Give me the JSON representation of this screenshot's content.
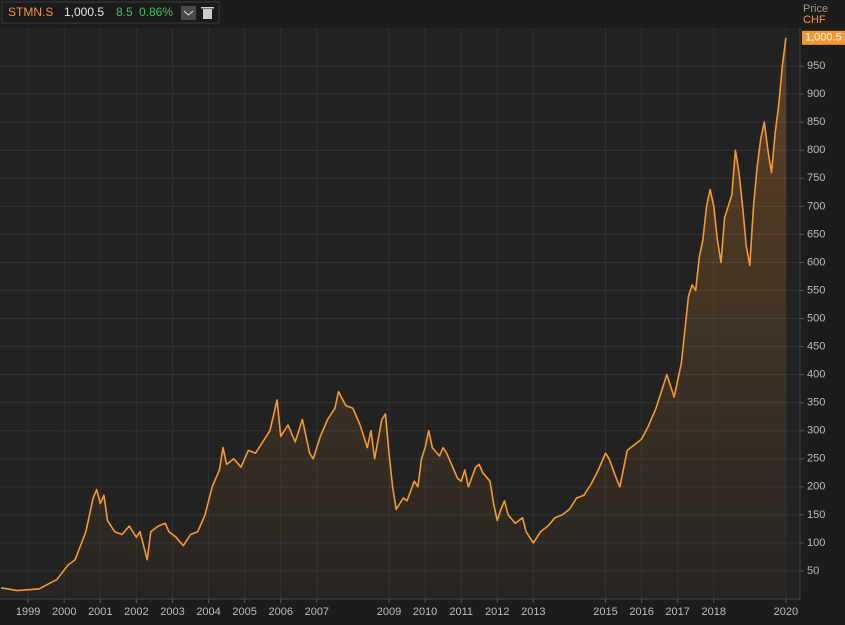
{
  "chart_data": {
    "type": "line",
    "header": {
      "last": "1,000.5",
      "change": "8.5",
      "change_pct": "0.86%"
    },
    "y_axis_title": "Price",
    "y_axis_unit": "CHF",
    "x": [
      1998.25,
      1998.7,
      1999.3,
      1999.8,
      2000.1,
      2000.3,
      2000.6,
      2000.8,
      2000.9,
      2001.0,
      2001.1,
      2001.2,
      2001.4,
      2001.6,
      2001.8,
      2002.0,
      2002.1,
      2002.3,
      2002.4,
      2002.6,
      2002.8,
      2002.9,
      2003.1,
      2003.3,
      2003.5,
      2003.7,
      2003.9,
      2004.1,
      2004.3,
      2004.4,
      2004.5,
      2004.7,
      2004.9,
      2005.1,
      2005.3,
      2005.5,
      2005.7,
      2005.9,
      2006.0,
      2006.2,
      2006.4,
      2006.6,
      2006.7,
      2006.8,
      2006.9,
      2007.1,
      2007.3,
      2007.5,
      2007.6,
      2007.8,
      2008.0,
      2008.2,
      2008.4,
      2008.5,
      2008.6,
      2008.8,
      2008.9,
      2009.0,
      2009.1,
      2009.2,
      2009.4,
      2009.5,
      2009.7,
      2009.8,
      2009.9,
      2010.0,
      2010.1,
      2010.2,
      2010.4,
      2010.5,
      2010.6,
      2010.8,
      2010.9,
      2011.0,
      2011.1,
      2011.2,
      2011.4,
      2011.5,
      2011.6,
      2011.8,
      2011.9,
      2012.0,
      2012.1,
      2012.2,
      2012.3,
      2012.5,
      2012.7,
      2012.8,
      2012.9,
      2013.0,
      2013.2,
      2013.4,
      2013.6,
      2013.8,
      2014.0,
      2014.2,
      2014.4,
      2014.6,
      2014.8,
      2015.0,
      2015.1,
      2015.3,
      2015.4,
      2015.6,
      2015.8,
      2016.0,
      2016.2,
      2016.4,
      2016.6,
      2016.7,
      2016.8,
      2016.9,
      2017.1,
      2017.2,
      2017.3,
      2017.4,
      2017.5,
      2017.6,
      2017.7,
      2017.8,
      2017.9,
      2018.0,
      2018.1,
      2018.2,
      2018.3,
      2018.5,
      2018.6,
      2018.7,
      2018.8,
      2018.9,
      2019.0,
      2019.1,
      2019.2,
      2019.3,
      2019.4,
      2019.5,
      2019.6,
      2019.7,
      2019.8,
      2019.9,
      2020.0
    ],
    "series": [
      {
        "name": "STMN.S",
        "color": "#f5982f",
        "values": [
          20,
          15,
          18,
          35,
          60,
          70,
          120,
          180,
          195,
          170,
          185,
          140,
          120,
          115,
          130,
          110,
          120,
          70,
          120,
          130,
          135,
          120,
          110,
          95,
          115,
          120,
          150,
          200,
          230,
          270,
          240,
          250,
          235,
          265,
          260,
          280,
          300,
          355,
          290,
          310,
          280,
          320,
          290,
          260,
          250,
          290,
          320,
          340,
          370,
          345,
          340,
          310,
          270,
          300,
          250,
          320,
          330,
          260,
          200,
          160,
          180,
          175,
          210,
          200,
          250,
          270,
          300,
          270,
          255,
          270,
          260,
          230,
          215,
          210,
          230,
          200,
          235,
          240,
          225,
          210,
          170,
          140,
          160,
          175,
          150,
          135,
          145,
          120,
          110,
          100,
          120,
          130,
          145,
          150,
          160,
          180,
          185,
          205,
          230,
          260,
          250,
          215,
          200,
          265,
          275,
          285,
          310,
          340,
          380,
          400,
          380,
          360,
          420,
          480,
          540,
          560,
          550,
          610,
          640,
          700,
          730,
          700,
          640,
          600,
          680,
          720,
          800,
          760,
          700,
          630,
          595,
          700,
          770,
          820,
          850,
          800,
          760,
          830,
          880,
          950,
          1000.5
        ]
      }
    ],
    "xlim": [
      1998.22,
      2020.39
    ],
    "xticks": [
      1999,
      2000,
      2001,
      2002,
      2003,
      2004,
      2005,
      2006,
      2007,
      2009,
      2010,
      2011,
      2012,
      2013,
      2015,
      2016,
      2017,
      2018,
      2020
    ],
    "ylim": [
      0,
      1018
    ],
    "yticks": [
      50,
      100,
      150,
      200,
      250,
      300,
      350,
      400,
      450,
      500,
      550,
      600,
      650,
      700,
      750,
      800,
      850,
      900,
      950
    ],
    "grid": true
  }
}
